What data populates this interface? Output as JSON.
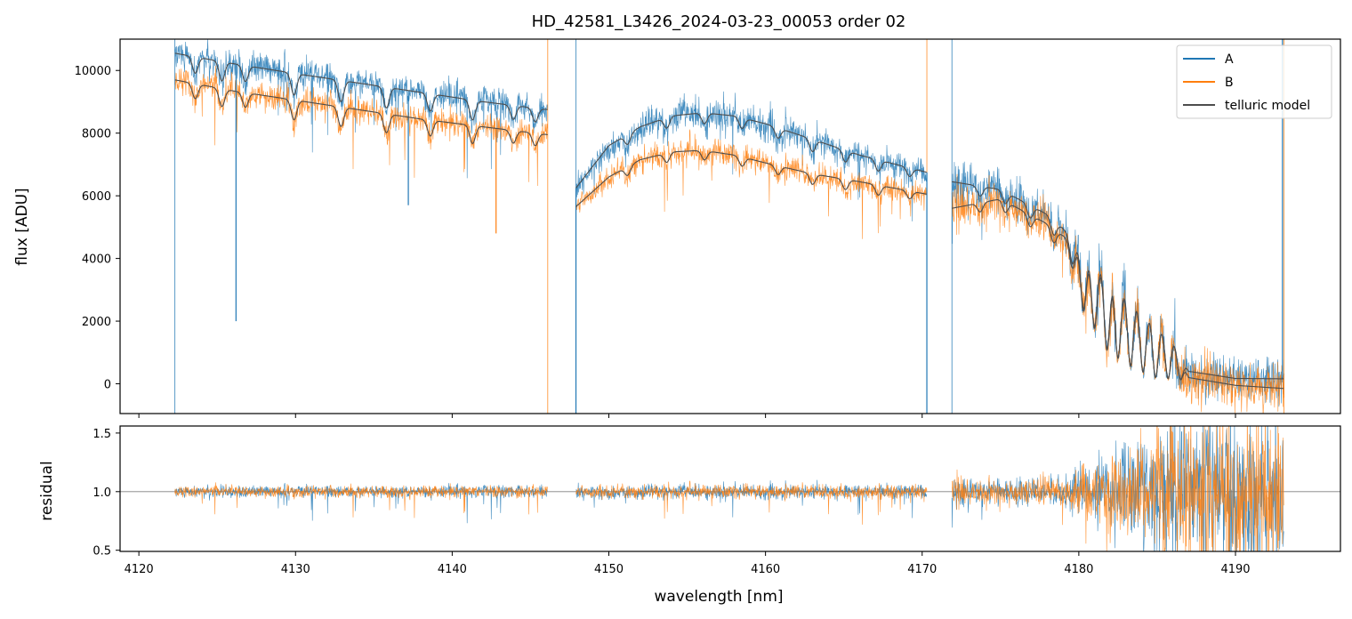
{
  "chart_data": {
    "type": "line",
    "title": "HD_42581_L3426_2024-03-23_00053  order 02",
    "xlabel": "wavelength [nm]",
    "colors": {
      "A": "#1f77b4",
      "B": "#ff7f0e",
      "telluric": "#4d4d4d",
      "ref_line": "#808080"
    },
    "xlim": [
      4118.8,
      4196.7
    ],
    "xticks": [
      4120,
      4130,
      4140,
      4150,
      4160,
      4170,
      4180,
      4190
    ],
    "xtick_labels": [
      "4120",
      "4130",
      "4140",
      "4150",
      "4160",
      "4170",
      "4180",
      "4190"
    ],
    "segments": [
      [
        4122.3,
        4146.1
      ],
      [
        4147.9,
        4170.3
      ],
      [
        4171.9,
        4193.1
      ]
    ],
    "top_panel": {
      "ylabel": "flux [ADU]",
      "ylim": [
        -950,
        11000
      ],
      "yticks": [
        0,
        2000,
        4000,
        6000,
        8000,
        10000
      ],
      "ytick_labels": [
        "0",
        "2000",
        "4000",
        "6000",
        "8000",
        "10000"
      ],
      "legend": {
        "position": "top-right",
        "entries": [
          "A",
          "B",
          "telluric model"
        ]
      },
      "series": [
        {
          "name": "A",
          "model_points": [
            [
              4122.3,
              10550
            ],
            [
              4126,
              10220
            ],
            [
              4130,
              9900
            ],
            [
              4134,
              9600
            ],
            [
              4138,
              9300
            ],
            [
              4142,
              9000
            ],
            [
              4146.1,
              8750
            ],
            [
              4147.9,
              6250
            ],
            [
              4150,
              7600
            ],
            [
              4152,
              8200
            ],
            [
              4154,
              8550
            ],
            [
              4156,
              8650
            ],
            [
              4158,
              8550
            ],
            [
              4160,
              8300
            ],
            [
              4163,
              7800
            ],
            [
              4166,
              7300
            ],
            [
              4170.3,
              6750
            ],
            [
              4171.9,
              6450
            ],
            [
              4175,
              6200
            ],
            [
              4178,
              5400
            ],
            [
              4180,
              4500
            ],
            [
              4182,
              3600
            ],
            [
              4184,
              2500
            ],
            [
              4186,
              1500
            ],
            [
              4187,
              400
            ],
            [
              4190,
              170
            ],
            [
              4193.1,
              160
            ]
          ]
        },
        {
          "name": "B",
          "model_points": [
            [
              4122.3,
              9700
            ],
            [
              4126,
              9350
            ],
            [
              4130,
              9050
            ],
            [
              4134,
              8750
            ],
            [
              4138,
              8450
            ],
            [
              4142,
              8200
            ],
            [
              4146.1,
              7950
            ],
            [
              4147.9,
              5650
            ],
            [
              4150,
              6600
            ],
            [
              4152,
              7150
            ],
            [
              4154,
              7400
            ],
            [
              4156,
              7450
            ],
            [
              4158,
              7300
            ],
            [
              4160,
              7050
            ],
            [
              4163,
              6700
            ],
            [
              4166,
              6450
            ],
            [
              4170.3,
              6050
            ],
            [
              4171.9,
              5600
            ],
            [
              4175,
              5900
            ],
            [
              4178,
              5100
            ],
            [
              4180,
              4350
            ],
            [
              4182,
              3500
            ],
            [
              4184,
              2500
            ],
            [
              4186,
              1500
            ],
            [
              4187,
              200
            ],
            [
              4190,
              -50
            ],
            [
              4193.1,
              -150
            ]
          ]
        }
      ],
      "telluric_lines": [
        {
          "wl": 4123.6,
          "depth": 0.05
        },
        {
          "wl": 4125.3,
          "depth": 0.06
        },
        {
          "wl": 4126.8,
          "depth": 0.05
        },
        {
          "wl": 4129.9,
          "depth": 0.07
        },
        {
          "wl": 4132.9,
          "depth": 0.07
        },
        {
          "wl": 4135.8,
          "depth": 0.07
        },
        {
          "wl": 4138.6,
          "depth": 0.06
        },
        {
          "wl": 4141.3,
          "depth": 0.07
        },
        {
          "wl": 4143.9,
          "depth": 0.05
        },
        {
          "wl": 4145.3,
          "depth": 0.05
        },
        {
          "wl": 4151.2,
          "depth": 0.04
        },
        {
          "wl": 4153.7,
          "depth": 0.04
        },
        {
          "wl": 4156.1,
          "depth": 0.04
        },
        {
          "wl": 4158.5,
          "depth": 0.04
        },
        {
          "wl": 4160.8,
          "depth": 0.04
        },
        {
          "wl": 4163.0,
          "depth": 0.05
        },
        {
          "wl": 4165.1,
          "depth": 0.05
        },
        {
          "wl": 4167.2,
          "depth": 0.05
        },
        {
          "wl": 4169.2,
          "depth": 0.04
        },
        {
          "wl": 4173.7,
          "depth": 0.05
        },
        {
          "wl": 4175.3,
          "depth": 0.06
        },
        {
          "wl": 4176.9,
          "depth": 0.07
        },
        {
          "wl": 4178.4,
          "depth": 0.09
        },
        {
          "wl": 4179.6,
          "depth": 0.18
        },
        {
          "wl": 4180.3,
          "depth": 0.45
        },
        {
          "wl": 4181.0,
          "depth": 0.55
        },
        {
          "wl": 4181.8,
          "depth": 0.7
        },
        {
          "wl": 4182.5,
          "depth": 0.75
        },
        {
          "wl": 4183.3,
          "depth": 0.8
        },
        {
          "wl": 4184.1,
          "depth": 0.85
        },
        {
          "wl": 4184.9,
          "depth": 0.9
        },
        {
          "wl": 4185.7,
          "depth": 0.9
        },
        {
          "wl": 4186.5,
          "depth": 0.85
        }
      ],
      "spikes": [
        {
          "series": "A",
          "wl": 4126.2,
          "flux": 2000
        },
        {
          "series": "A",
          "wl": 4137.2,
          "flux": 5700
        },
        {
          "series": "B",
          "wl": 4142.8,
          "flux": 4800
        },
        {
          "series": "A",
          "wl": 4170.3,
          "flux": -950
        },
        {
          "series": "A",
          "wl": 4147.9,
          "flux": -950
        },
        {
          "series": "A",
          "wl": 4193.0,
          "flux": 11000
        }
      ]
    },
    "bottom_panel": {
      "ylabel": "residual",
      "ylim": [
        0.49,
        1.56
      ],
      "yticks": [
        0.5,
        1.0,
        1.5
      ],
      "ytick_labels": [
        "0.5",
        "1.0",
        "1.5"
      ],
      "reference_line": 1.0,
      "noise_sigma_by_segment": [
        0.025,
        0.03,
        0.06
      ],
      "noise_growth_from": 4179.0,
      "noise_max_sigma": 0.35
    }
  }
}
